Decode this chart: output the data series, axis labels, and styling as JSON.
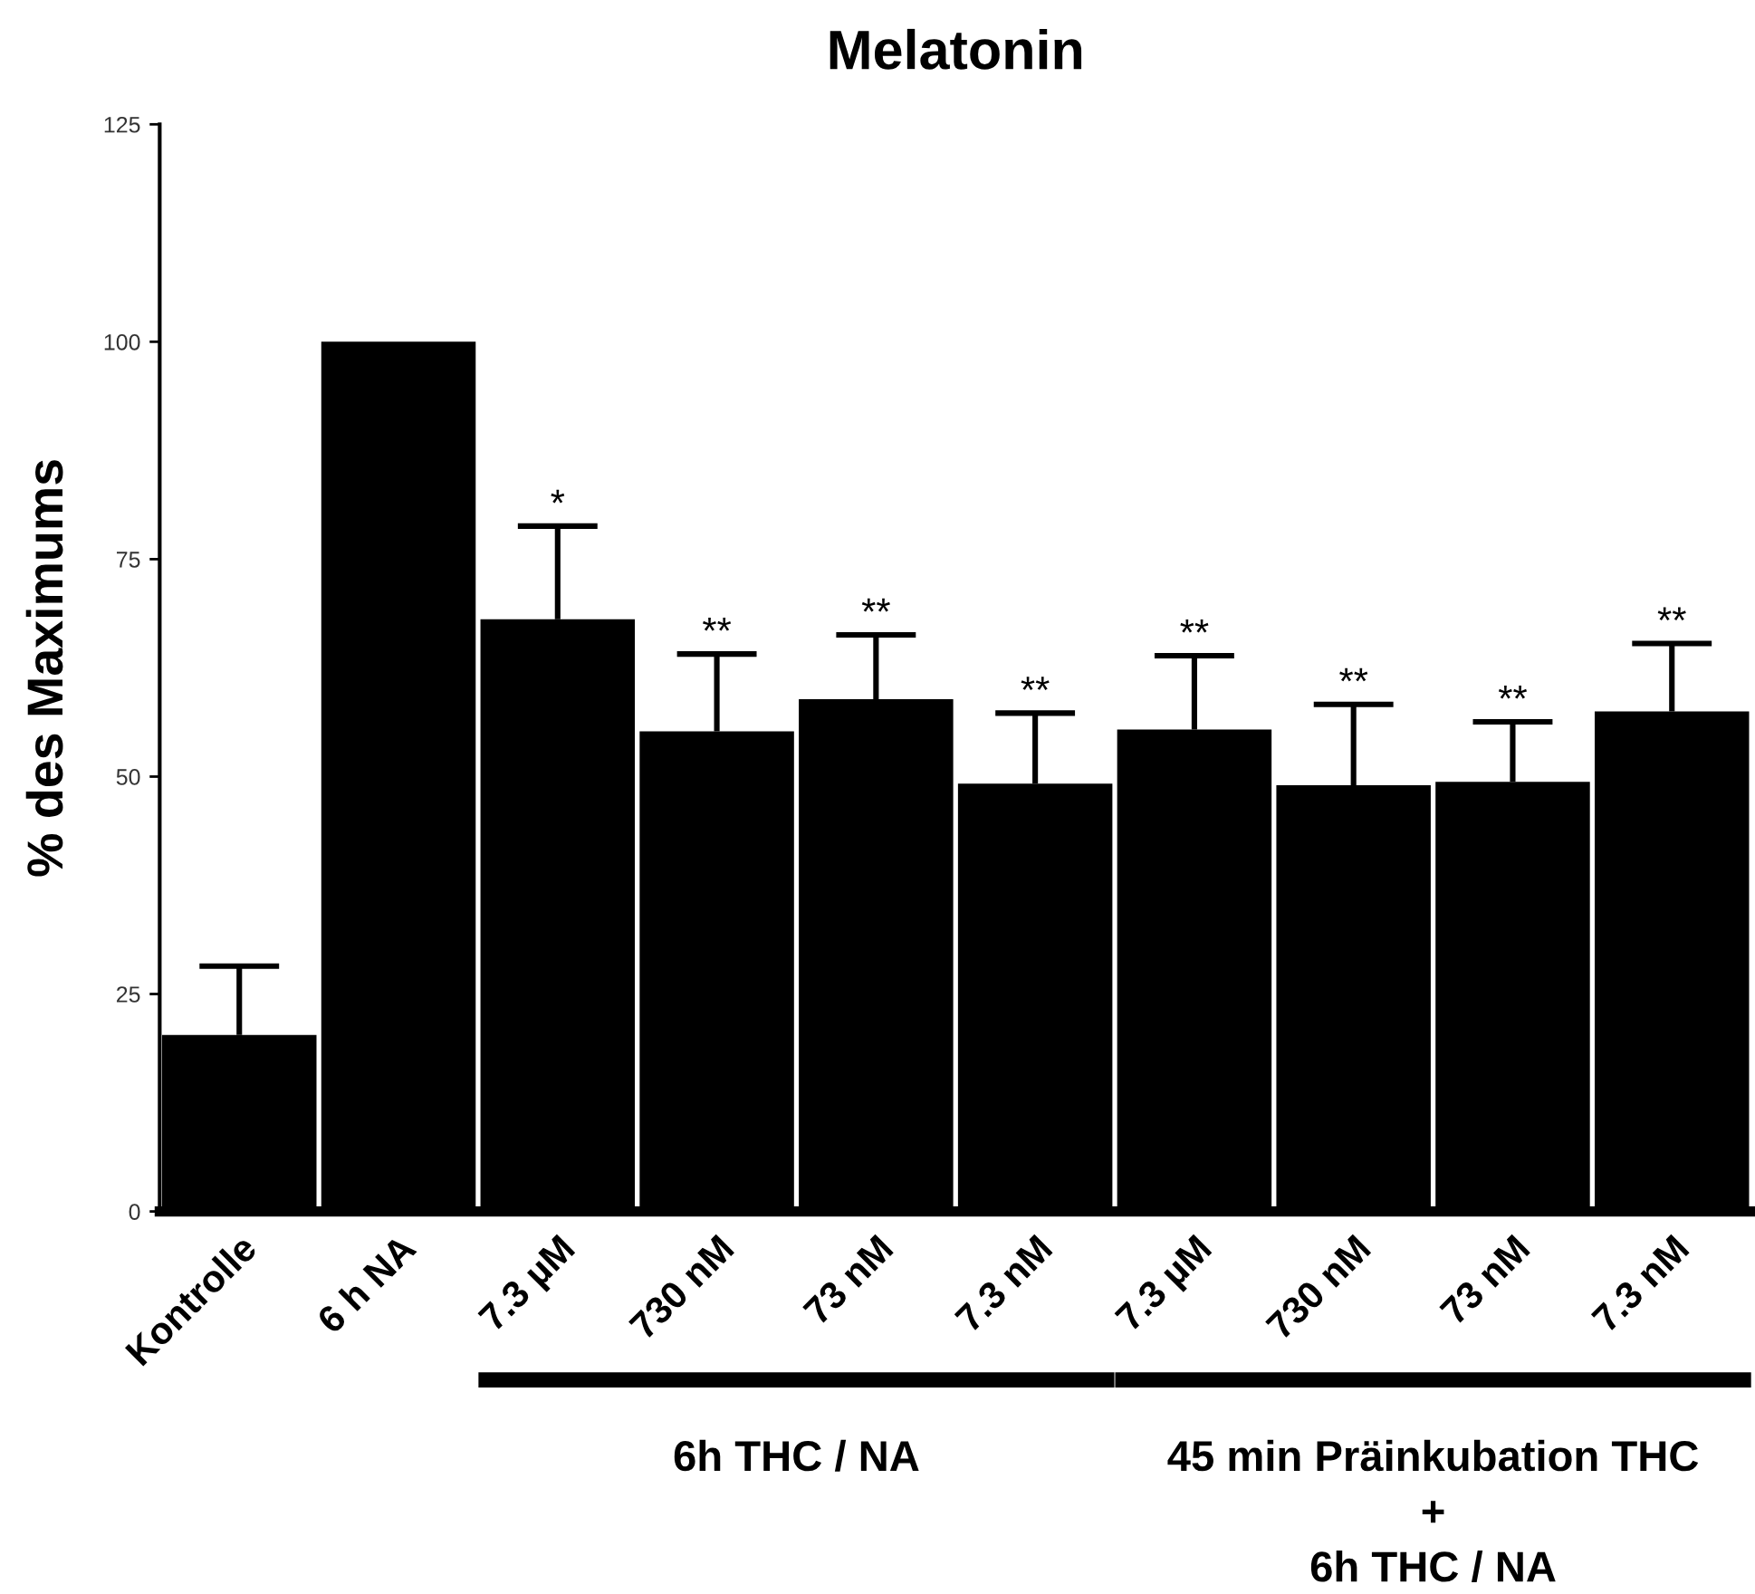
{
  "chart_data": {
    "type": "bar",
    "title": "Melatonin",
    "ylabel": "% des Maximums",
    "categories": [
      "Kontrolle",
      "6 h NA",
      "7.3 µM",
      "730 nM",
      "73 nM",
      "7.3 nM",
      "7.3 µM",
      "730 nM",
      "73 nM",
      "7.3 nM"
    ],
    "values": [
      20.3,
      100,
      68.1,
      55.2,
      58.9,
      49.2,
      55.4,
      49.0,
      49.4,
      57.5
    ],
    "errors": [
      [
        20.3,
        28.2
      ],
      null,
      [
        68.1,
        78.8
      ],
      [
        55.2,
        64.1
      ],
      [
        58.9,
        66.3
      ],
      [
        49.2,
        57.3
      ],
      [
        55.4,
        63.9
      ],
      [
        49.0,
        58.3
      ],
      [
        49.4,
        56.3
      ],
      [
        57.5,
        65.3
      ]
    ],
    "value_labels": [
      null,
      null,
      "*",
      "**",
      "**",
      "**",
      "**",
      "**",
      "**",
      "**"
    ],
    "color": "#000000",
    "ylim": [
      0,
      125
    ],
    "yticks": [
      0,
      25,
      50,
      75,
      100,
      125
    ],
    "grid": false,
    "annotations": [
      "6h THC / NA",
      "45 min Präinkubation THC\n+\n6h THC / NA"
    ]
  }
}
